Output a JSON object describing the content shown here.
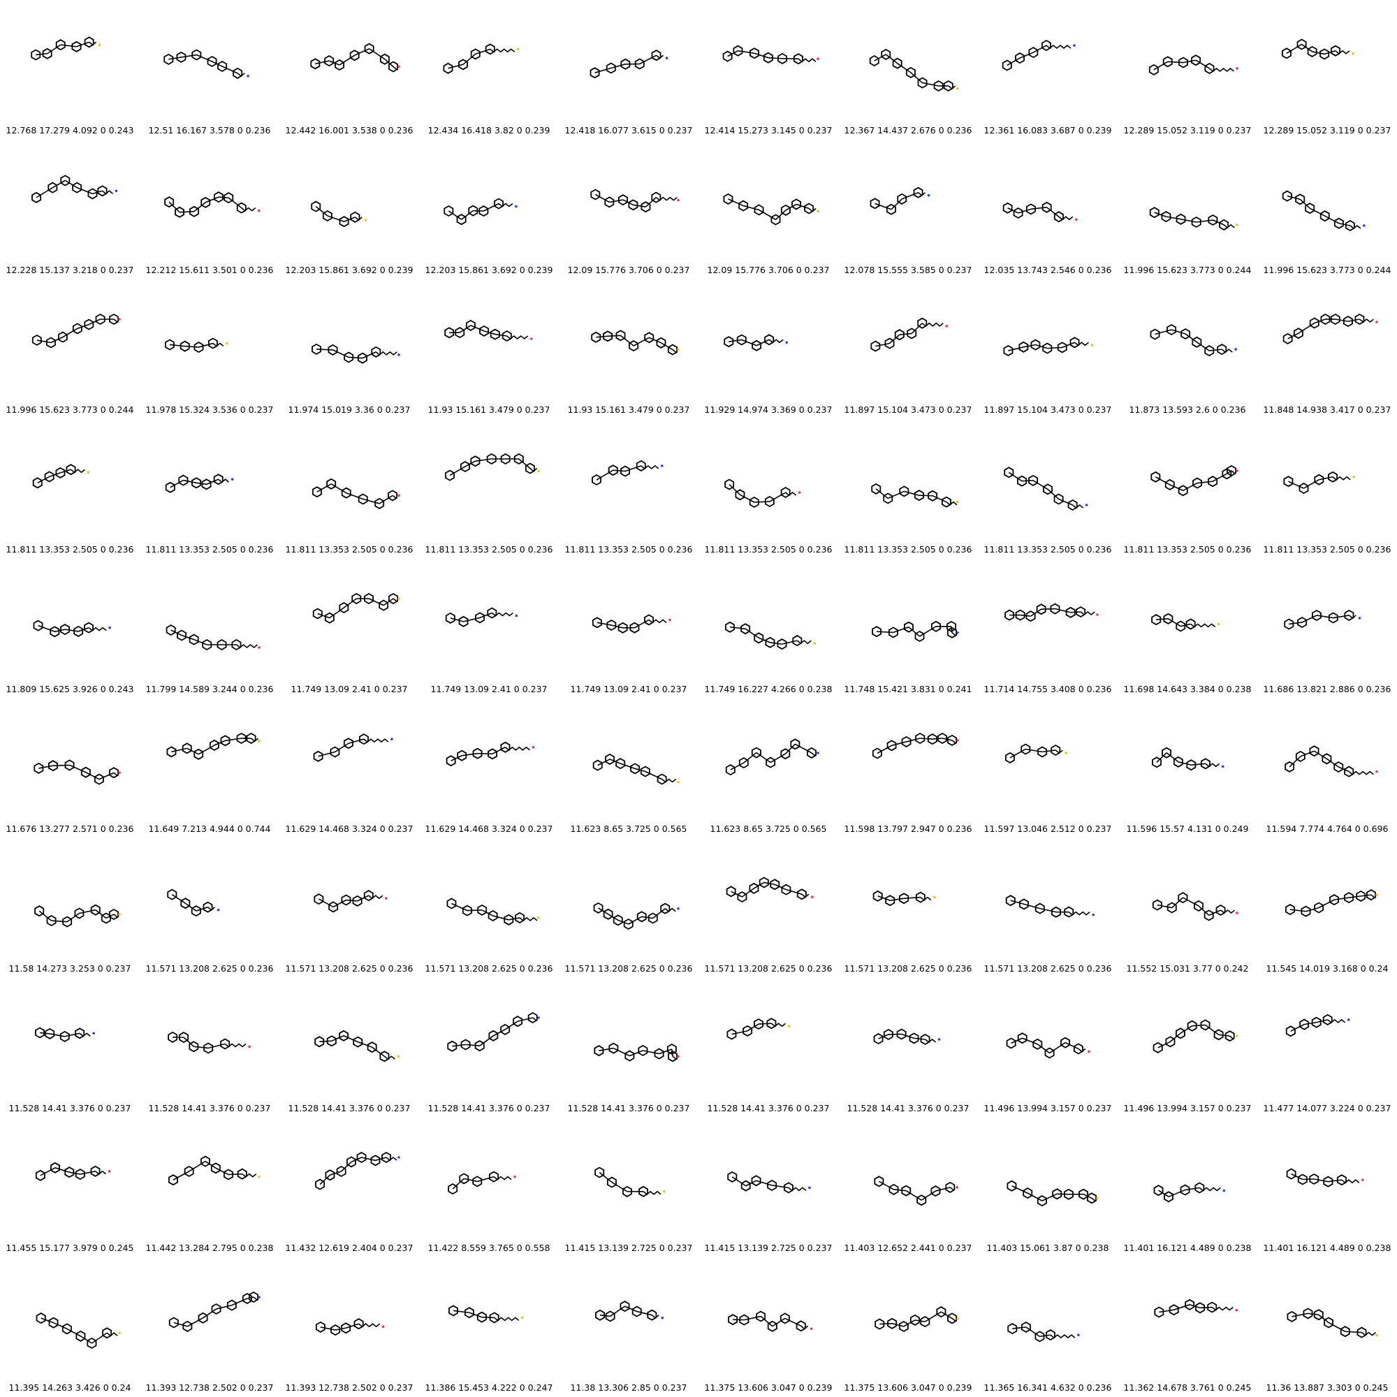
{
  "palette": {
    "bond": "#000000",
    "O": "#e63946",
    "S": "#e6c229",
    "N": "#2b3fd1",
    "ring_highlight": "#b22222"
  },
  "captions": [
    "12.768 17.279 4.092 0 0.243",
    "12.51 16.167 3.578 0 0.236",
    "12.442 16.001 3.538 0 0.236",
    "12.434 16.418 3.82 0 0.239",
    "12.418 16.077 3.615 0 0.237",
    "12.414 15.273 3.145 0 0.237",
    "12.367 14.437 2.676 0 0.236",
    "12.361 16.083 3.687 0 0.239",
    "12.289 15.052 3.119 0 0.237",
    "12.289 15.052 3.119 0 0.237",
    "12.228 15.137 3.218 0 0.237",
    "12.212 15.611 3.501 0 0.236",
    "12.203 15.861 3.692 0 0.239",
    "12.203 15.861 3.692 0 0.239",
    "12.09 15.776 3.706 0 0.237",
    "12.09 15.776 3.706 0 0.237",
    "12.078 15.555 3.585 0 0.237",
    "12.035 13.743 2.546 0 0.236",
    "11.996 15.623 3.773 0 0.244",
    "11.996 15.623 3.773 0 0.244",
    "11.996 15.623 3.773 0 0.244",
    "11.978 15.324 3.536 0 0.237",
    "11.974 15.019 3.36 0 0.237",
    "11.93 15.161 3.479 0 0.237",
    "11.93 15.161 3.479 0 0.237",
    "11.929 14.974 3.369 0 0.237",
    "11.897 15.104 3.473 0 0.237",
    "11.897 15.104 3.473 0 0.237",
    "11.873 13.593 2.6 0 0.236",
    "11.848 14.938 3.417 0 0.237",
    "11.811 13.353 2.505 0 0.236",
    "11.811 13.353 2.505 0 0.236",
    "11.811 13.353 2.505 0 0.236",
    "11.811 13.353 2.505 0 0.236",
    "11.811 13.353 2.505 0 0.236",
    "11.811 13.353 2.505 0 0.236",
    "11.811 13.353 2.505 0 0.236",
    "11.811 13.353 2.505 0 0.236",
    "11.811 13.353 2.505 0 0.236",
    "11.811 13.353 2.505 0 0.236",
    "11.809 15.625 3.926 0 0.243",
    "11.799 14.589 3.244 0 0.236",
    "11.749 13.09 2.41 0 0.237",
    "11.749 13.09 2.41 0 0.237",
    "11.749 13.09 2.41 0 0.237",
    "11.749 16.227 4.266 0 0.238",
    "11.748 15.421 3.831 0 0.241",
    "11.714 14.755 3.408 0 0.236",
    "11.698 14.643 3.384 0 0.238",
    "11.686 13.821 2.886 0 0.236",
    "11.676 13.277 2.571 0 0.236",
    "11.649 7.213 4.944 0 0.744",
    "11.629 14.468 3.324 0 0.237",
    "11.629 14.468 3.324 0 0.237",
    "11.623 8.65 3.725 0 0.565",
    "11.623 8.65 3.725 0 0.565",
    "11.598 13.797 2.947 0 0.236",
    "11.597 13.046 2.512 0 0.237",
    "11.596 15.57 4.131 0 0.249",
    "11.594 7.774 4.764 0 0.696",
    "11.58 14.273 3.253 0 0.237",
    "11.571 13.208 2.625 0 0.236",
    "11.571 13.208 2.625 0 0.236",
    "11.571 13.208 2.625 0 0.236",
    "11.571 13.208 2.625 0 0.236",
    "11.571 13.208 2.625 0 0.236",
    "11.571 13.208 2.625 0 0.236",
    "11.571 13.208 2.625 0 0.236",
    "11.552 15.031 3.77 0 0.242",
    "11.545 14.019 3.168 0 0.24",
    "11.528 14.41 3.376 0 0.237",
    "11.528 14.41 3.376 0 0.237",
    "11.528 14.41 3.376 0 0.237",
    "11.528 14.41 3.376 0 0.237",
    "11.528 14.41 3.376 0 0.237",
    "11.528 14.41 3.376 0 0.237",
    "11.528 14.41 3.376 0 0.237",
    "11.496 13.994 3.157 0 0.237",
    "11.496 13.994 3.157 0 0.237",
    "11.477 14.077 3.224 0 0.237",
    "11.455 15.177 3.979 0 0.245",
    "11.442 13.284 2.795 0 0.238",
    "11.432 12.619 2.404 0 0.237",
    "11.422 8.559 3.765 0 0.558",
    "11.415 13.139 2.725 0 0.237",
    "11.415 13.139 2.725 0 0.237",
    "11.403 12.652 2.441 0 0.237",
    "11.403 15.061 3.87 0 0.238",
    "11.401 16.121 4.489 0 0.238",
    "11.401 16.121 4.489 0 0.238",
    "11.395 14.263 3.426 0 0.24",
    "11.393 12.738 2.502 0 0.237",
    "11.393 12.738 2.502 0 0.237",
    "11.386 15.453 4.222 0 0.247",
    "11.38 13.306 2.85 0 0.237",
    "11.375 13.606 3.047 0 0.239",
    "11.375 13.606 3.047 0 0.239",
    "11.365 16.341 4.632 0 0.236",
    "11.362 14.678 3.761 0 0.245",
    "11.36 13.887 3.303 0 0.245"
  ]
}
